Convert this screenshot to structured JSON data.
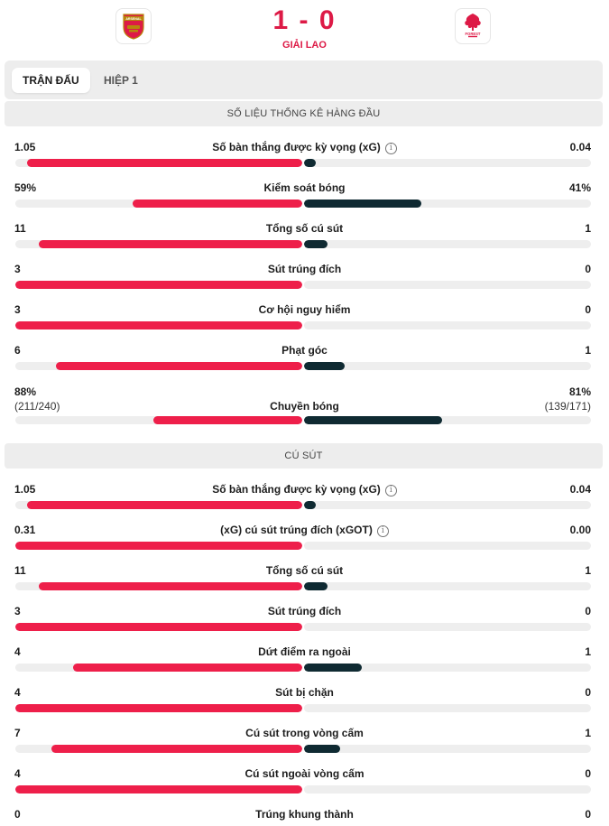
{
  "match": {
    "score": "1 - 0",
    "status": "GIẢI LAO",
    "home_crest_text": "ARSENAL",
    "away_crest_text": "FOREST",
    "home_color": "#dd1a46",
    "away_color": "#dd1a46"
  },
  "tabs": [
    {
      "label": "TRẬN ĐẤU",
      "active": true
    },
    {
      "label": "HIỆP 1",
      "active": false
    }
  ],
  "sections": [
    {
      "title": "SỐ LIỆU THỐNG KÊ HÀNG ĐẦU",
      "stats": [
        {
          "label": "Số bàn thắng được kỳ vọng (xG)",
          "info": true,
          "home": "1.05",
          "away": "0.04",
          "home_frac": 0.96,
          "away_frac": 0.04
        },
        {
          "label": "Kiểm soát bóng",
          "info": false,
          "home": "59%",
          "away": "41%",
          "home_frac": 0.59,
          "away_frac": 0.41
        },
        {
          "label": "Tổng số cú sút",
          "info": false,
          "home": "11",
          "away": "1",
          "home_frac": 0.917,
          "away_frac": 0.083
        },
        {
          "label": "Sút trúng đích",
          "info": false,
          "home": "3",
          "away": "0",
          "home_frac": 1.0,
          "away_frac": 0.0
        },
        {
          "label": "Cơ hội nguy hiểm",
          "info": false,
          "home": "3",
          "away": "0",
          "home_frac": 1.0,
          "away_frac": 0.0
        },
        {
          "label": "Phạt góc",
          "info": false,
          "home": "6",
          "away": "1",
          "home_frac": 0.857,
          "away_frac": 0.143
        },
        {
          "label": "Chuyền bóng",
          "info": false,
          "home": "88%",
          "away": "81%",
          "home_sub": "(211/240)",
          "away_sub": "(139/171)",
          "home_frac": 0.52,
          "away_frac": 0.48
        }
      ]
    },
    {
      "title": "CÚ SÚT",
      "stats": [
        {
          "label": "Số bàn thắng được kỳ vọng (xG)",
          "info": true,
          "home": "1.05",
          "away": "0.04",
          "home_frac": 0.96,
          "away_frac": 0.04
        },
        {
          "label": "(xG) cú sút trúng đích (xGOT)",
          "info": true,
          "home": "0.31",
          "away": "0.00",
          "home_frac": 1.0,
          "away_frac": 0.0
        },
        {
          "label": "Tổng số cú sút",
          "info": false,
          "home": "11",
          "away": "1",
          "home_frac": 0.917,
          "away_frac": 0.083
        },
        {
          "label": "Sút trúng đích",
          "info": false,
          "home": "3",
          "away": "0",
          "home_frac": 1.0,
          "away_frac": 0.0
        },
        {
          "label": "Dứt điểm ra ngoài",
          "info": false,
          "home": "4",
          "away": "1",
          "home_frac": 0.8,
          "away_frac": 0.2
        },
        {
          "label": "Sút bị chặn",
          "info": false,
          "home": "4",
          "away": "0",
          "home_frac": 1.0,
          "away_frac": 0.0
        },
        {
          "label": "Cú sút trong vòng cấm",
          "info": false,
          "home": "7",
          "away": "1",
          "home_frac": 0.875,
          "away_frac": 0.125
        },
        {
          "label": "Cú sút ngoài vòng cấm",
          "info": false,
          "home": "4",
          "away": "0",
          "home_frac": 1.0,
          "away_frac": 0.0
        },
        {
          "label": "Trúng khung thành",
          "info": false,
          "home": "0",
          "away": "0",
          "home_frac": 0.0,
          "away_frac": 0.0
        }
      ]
    }
  ]
}
